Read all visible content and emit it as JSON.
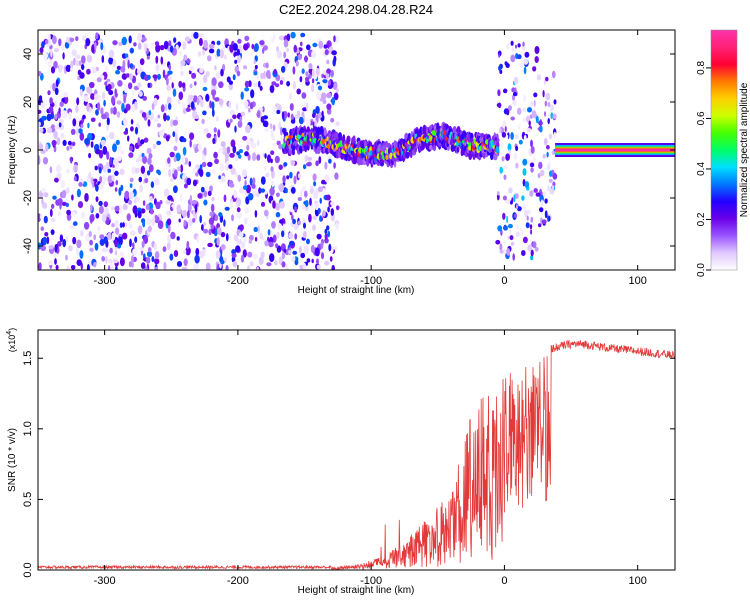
{
  "title": "C2E2.2024.298.04.28.R24",
  "chart_data": [
    {
      "type": "heatmap",
      "xlabel": "Height of straight line (km)",
      "ylabel": "Frequency (Hz)",
      "xlim": [
        -350,
        128
      ],
      "ylim": [
        -50,
        50
      ],
      "xticks": [
        -300,
        -200,
        -100,
        0,
        100
      ],
      "yticks": [
        -40,
        -20,
        0,
        20,
        40
      ],
      "colorbar": {
        "label": "Normalized spectral amplitude",
        "range": [
          0,
          0.95
        ],
        "ticks": [
          0.0,
          0.2,
          0.4,
          0.6,
          0.8
        ],
        "colors": [
          "#ffffff",
          "#e0c8ff",
          "#9a55ff",
          "#6a00e8",
          "#2200ff",
          "#0077ff",
          "#00e0ff",
          "#00ff66",
          "#44ff00",
          "#ccff00",
          "#ffd000",
          "#ff7a00",
          "#ff0033",
          "#ff2277",
          "#ff33aa"
        ]
      },
      "regions": [
        {
          "x": [
            -350,
            -125
          ],
          "f": [
            -50,
            48
          ],
          "amp": [
            0.02,
            0.35
          ],
          "note": "broadband noise"
        },
        {
          "x": [
            -165,
            -5
          ],
          "center_hz": [
            3,
            5,
            2,
            -1,
            -2,
            4,
            6,
            2,
            1
          ],
          "amp_peak": 0.6
        },
        {
          "x": [
            -5,
            38
          ],
          "f": [
            -45,
            45
          ],
          "amp": [
            0.02,
            0.4
          ]
        },
        {
          "x": [
            38,
            128
          ],
          "center_hz": 0,
          "amp_peak": 0.95
        }
      ]
    },
    {
      "type": "line",
      "xlabel": "Height of straight line (km)",
      "ylabel": "SNR (10 * v/v)",
      "y_multiplier": "(x10",
      "y_multiplier_exp": "4",
      "y_multiplier_close": ")",
      "xlim": [
        -350,
        128
      ],
      "ylim": [
        0,
        1.7
      ],
      "xticks": [
        -300,
        -200,
        -100,
        0,
        100
      ],
      "yticks": [
        "0.0",
        "0.5",
        "1.0",
        "1.5"
      ],
      "yticks_values": [
        0,
        0.5,
        1.0,
        1.5
      ],
      "color": "#e23a3a",
      "envelope": [
        [
          -350,
          0.02
        ],
        [
          -130,
          0.02
        ],
        [
          -110,
          0.04
        ],
        [
          -90,
          0.1
        ],
        [
          -70,
          0.25
        ],
        [
          -55,
          0.4
        ],
        [
          -40,
          0.62
        ],
        [
          -30,
          0.95
        ],
        [
          -25,
          1.1
        ],
        [
          -15,
          1.25
        ],
        [
          -5,
          1.35
        ],
        [
          0,
          1.4
        ],
        [
          10,
          1.45
        ],
        [
          20,
          1.5
        ],
        [
          30,
          1.55
        ],
        [
          40,
          1.58
        ],
        [
          50,
          1.6
        ],
        [
          60,
          1.6
        ],
        [
          80,
          1.57
        ],
        [
          100,
          1.55
        ],
        [
          128,
          1.52
        ]
      ]
    }
  ]
}
